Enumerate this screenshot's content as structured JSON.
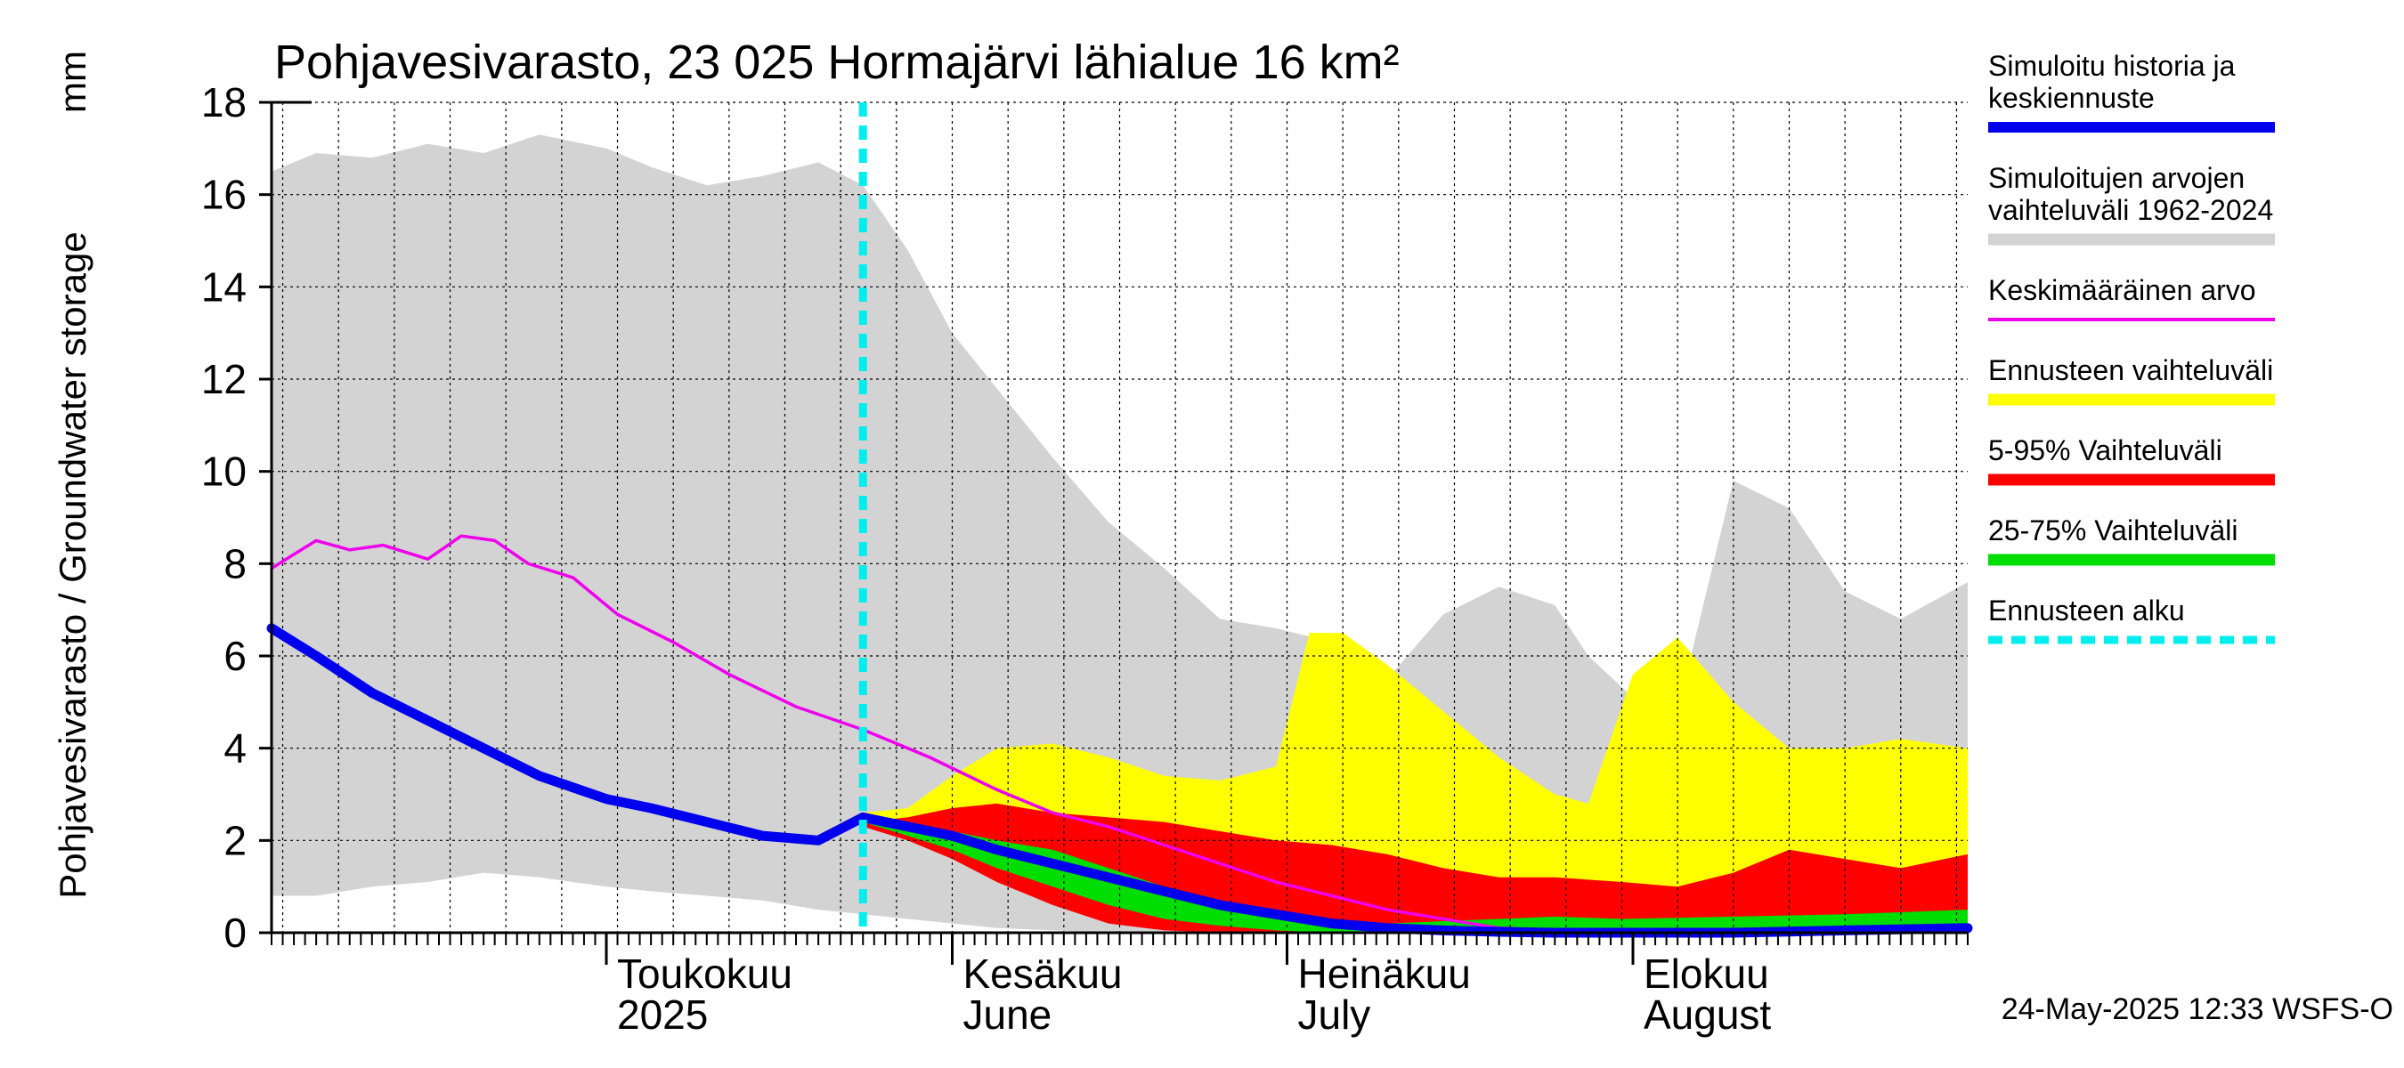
{
  "chart_data": {
    "type": "area",
    "title": "Pohjavesivarasto, 23 025 Hormajärvi lähialue 16 km²",
    "ylabel": "Pohjavesivarasto / Groundwater storage",
    "yunit": "mm",
    "ylim": [
      0,
      18
    ],
    "yticks": [
      0,
      2,
      4,
      6,
      8,
      10,
      12,
      14,
      16,
      18
    ],
    "xlim": [
      "2025-04-01",
      "2025-08-31"
    ],
    "month_labels": [
      {
        "date": "2025-05-01",
        "line1": "Toukokuu",
        "line2": "2025"
      },
      {
        "date": "2025-06-01",
        "line1": "Kesäkuu",
        "line2": "June"
      },
      {
        "date": "2025-07-01",
        "line1": "Heinäkuu",
        "line2": "July"
      },
      {
        "date": "2025-08-01",
        "line1": "Elokuu",
        "line2": "August"
      }
    ],
    "forecast_start": "2025-05-24",
    "grid": true,
    "legend_position": "right",
    "legend": [
      {
        "label": "Simuloitu historia ja keskiennuste",
        "lines": [
          "Simuloitu historia ja",
          "keskiennuste"
        ],
        "color": "#0000ee",
        "style": "thick"
      },
      {
        "label": "Simuloitujen arvojen vaihteluväli 1962-2024",
        "lines": [
          "Simuloitujen arvojen",
          "vaihteluväli 1962-2024"
        ],
        "color": "#d3d3d3",
        "style": "band"
      },
      {
        "label": "Keskimääräinen arvo",
        "lines": [
          "Keskimääräinen arvo"
        ],
        "color": "#ee00ee",
        "style": "thin"
      },
      {
        "label": "Ennusteen vaihteluväli",
        "lines": [
          "Ennusteen vaihteluväli"
        ],
        "color": "#ffff00",
        "style": "band"
      },
      {
        "label": "5-95% Vaihteluväli",
        "lines": [
          "5-95% Vaihteluväli"
        ],
        "color": "#ff0000",
        "style": "band"
      },
      {
        "label": "25-75% Vaihteluväli",
        "lines": [
          "25-75% Vaihteluväli"
        ],
        "color": "#00dd00",
        "style": "band"
      },
      {
        "label": "Ennusteen alku",
        "lines": [
          "Ennusteen alku"
        ],
        "color": "#00eeee",
        "style": "dashed"
      }
    ],
    "series": {
      "historical_range": {
        "x": [
          "2025-04-01",
          "2025-04-05",
          "2025-04-10",
          "2025-04-15",
          "2025-04-20",
          "2025-04-25",
          "2025-05-01",
          "2025-05-05",
          "2025-05-10",
          "2025-05-15",
          "2025-05-20",
          "2025-05-24",
          "2025-05-28",
          "2025-06-01",
          "2025-06-05",
          "2025-06-10",
          "2025-06-15",
          "2025-06-20",
          "2025-06-25",
          "2025-06-30",
          "2025-07-05",
          "2025-07-10",
          "2025-07-15",
          "2025-07-20",
          "2025-07-25",
          "2025-07-28",
          "2025-08-01",
          "2025-08-05",
          "2025-08-10",
          "2025-08-15",
          "2025-08-20",
          "2025-08-25",
          "2025-08-31"
        ],
        "high": [
          16.5,
          16.9,
          16.8,
          17.1,
          16.9,
          17.3,
          17.0,
          16.6,
          16.2,
          16.4,
          16.7,
          16.2,
          14.8,
          13.0,
          11.8,
          10.3,
          8.9,
          7.9,
          6.8,
          6.6,
          6.3,
          5.5,
          6.9,
          7.5,
          7.1,
          6.0,
          5.1,
          4.8,
          9.8,
          9.2,
          7.4,
          6.8,
          7.6
        ],
        "low": [
          0.8,
          0.8,
          1.0,
          1.1,
          1.3,
          1.2,
          1.0,
          0.9,
          0.8,
          0.7,
          0.5,
          0.4,
          0.3,
          0.2,
          0.1,
          0.05,
          0.0,
          0.0,
          0.0,
          0.0,
          0.0,
          0.0,
          0.0,
          0.0,
          0.0,
          0.0,
          0.0,
          0.0,
          0.0,
          0.0,
          0.0,
          0.0,
          0.0
        ]
      },
      "average": {
        "x": [
          "2025-04-01",
          "2025-04-05",
          "2025-04-08",
          "2025-04-11",
          "2025-04-15",
          "2025-04-18",
          "2025-04-21",
          "2025-04-24",
          "2025-04-28",
          "2025-05-02",
          "2025-05-07",
          "2025-05-12",
          "2025-05-18",
          "2025-05-24",
          "2025-05-30",
          "2025-06-05",
          "2025-06-10",
          "2025-06-15",
          "2025-06-20",
          "2025-06-25",
          "2025-06-30",
          "2025-07-05",
          "2025-07-10",
          "2025-07-15",
          "2025-07-20",
          "2025-07-25",
          "2025-07-31",
          "2025-08-10",
          "2025-08-20",
          "2025-08-31"
        ],
        "values": [
          7.9,
          8.5,
          8.3,
          8.4,
          8.1,
          8.6,
          8.5,
          8.0,
          7.7,
          6.9,
          6.3,
          5.6,
          4.9,
          4.4,
          3.8,
          3.1,
          2.6,
          2.3,
          1.9,
          1.5,
          1.1,
          0.8,
          0.5,
          0.3,
          0.1,
          0.05,
          0.05,
          0.05,
          0.1,
          0.1
        ]
      },
      "simulated": {
        "x": [
          "2025-04-01",
          "2025-04-05",
          "2025-04-10",
          "2025-04-15",
          "2025-04-20",
          "2025-04-25",
          "2025-05-01",
          "2025-05-05",
          "2025-05-10",
          "2025-05-15",
          "2025-05-20",
          "2025-05-24",
          "2025-05-28",
          "2025-06-01",
          "2025-06-05",
          "2025-06-10",
          "2025-06-15",
          "2025-06-20",
          "2025-06-25",
          "2025-06-30",
          "2025-07-05",
          "2025-07-10",
          "2025-07-15",
          "2025-07-20",
          "2025-07-25",
          "2025-07-31",
          "2025-08-10",
          "2025-08-20",
          "2025-08-31"
        ],
        "values": [
          6.6,
          6.0,
          5.2,
          4.6,
          4.0,
          3.4,
          2.9,
          2.7,
          2.4,
          2.1,
          2.0,
          2.5,
          2.3,
          2.1,
          1.8,
          1.5,
          1.2,
          0.9,
          0.6,
          0.4,
          0.2,
          0.1,
          0.05,
          0.02,
          0.0,
          0.0,
          0.0,
          0.05,
          0.1
        ]
      },
      "forecast_range": {
        "x": [
          "2025-05-24",
          "2025-05-28",
          "2025-06-01",
          "2025-06-05",
          "2025-06-10",
          "2025-06-15",
          "2025-06-20",
          "2025-06-25",
          "2025-06-30",
          "2025-07-03",
          "2025-07-06",
          "2025-07-10",
          "2025-07-15",
          "2025-07-20",
          "2025-07-25",
          "2025-07-28",
          "2025-08-01",
          "2025-08-05",
          "2025-08-10",
          "2025-08-15",
          "2025-08-20",
          "2025-08-25",
          "2025-08-31"
        ],
        "high": [
          2.6,
          2.7,
          3.4,
          4.0,
          4.1,
          3.8,
          3.4,
          3.3,
          3.6,
          6.5,
          6.5,
          5.8,
          4.8,
          3.8,
          3.0,
          2.8,
          5.6,
          6.4,
          5.0,
          4.0,
          4.0,
          4.2,
          4.0
        ],
        "low": [
          2.4,
          2.2,
          1.8,
          1.3,
          0.8,
          0.4,
          0.2,
          0.1,
          0.05,
          0.0,
          0.0,
          0.0,
          0.0,
          0.0,
          0.0,
          0.0,
          0.0,
          0.0,
          0.0,
          0.0,
          0.0,
          0.0,
          0.0
        ]
      },
      "range_5_95": {
        "x": [
          "2025-05-24",
          "2025-05-28",
          "2025-06-01",
          "2025-06-05",
          "2025-06-10",
          "2025-06-15",
          "2025-06-20",
          "2025-06-25",
          "2025-06-30",
          "2025-07-05",
          "2025-07-10",
          "2025-07-15",
          "2025-07-20",
          "2025-07-25",
          "2025-07-31",
          "2025-08-05",
          "2025-08-10",
          "2025-08-15",
          "2025-08-20",
          "2025-08-25",
          "2025-08-31"
        ],
        "high": [
          2.4,
          2.5,
          2.7,
          2.8,
          2.6,
          2.5,
          2.4,
          2.2,
          2.0,
          1.9,
          1.7,
          1.4,
          1.2,
          1.2,
          1.1,
          1.0,
          1.3,
          1.8,
          1.6,
          1.4,
          1.7
        ],
        "low": [
          2.3,
          2.0,
          1.6,
          1.1,
          0.6,
          0.2,
          0.05,
          0.0,
          0.0,
          0.0,
          0.0,
          0.0,
          0.0,
          0.0,
          0.0,
          0.0,
          0.0,
          0.0,
          0.0,
          0.0,
          0.0
        ]
      },
      "range_25_75": {
        "x": [
          "2025-05-24",
          "2025-05-28",
          "2025-06-01",
          "2025-06-05",
          "2025-06-10",
          "2025-06-15",
          "2025-06-20",
          "2025-06-25",
          "2025-06-30",
          "2025-07-05",
          "2025-07-10",
          "2025-07-15",
          "2025-07-20",
          "2025-07-25",
          "2025-07-31",
          "2025-08-10",
          "2025-08-20",
          "2025-08-31"
        ],
        "high": [
          2.4,
          2.3,
          2.2,
          2.0,
          1.8,
          1.4,
          1.0,
          0.7,
          0.5,
          0.3,
          0.2,
          0.25,
          0.3,
          0.35,
          0.3,
          0.35,
          0.4,
          0.5
        ],
        "low": [
          2.4,
          2.1,
          1.8,
          1.4,
          1.0,
          0.6,
          0.3,
          0.15,
          0.05,
          0.0,
          0.0,
          0.0,
          0.0,
          0.0,
          0.0,
          0.0,
          0.0,
          0.0
        ]
      }
    }
  },
  "footer": {
    "timestamp": "24-May-2025 12:33 WSFS-O"
  }
}
